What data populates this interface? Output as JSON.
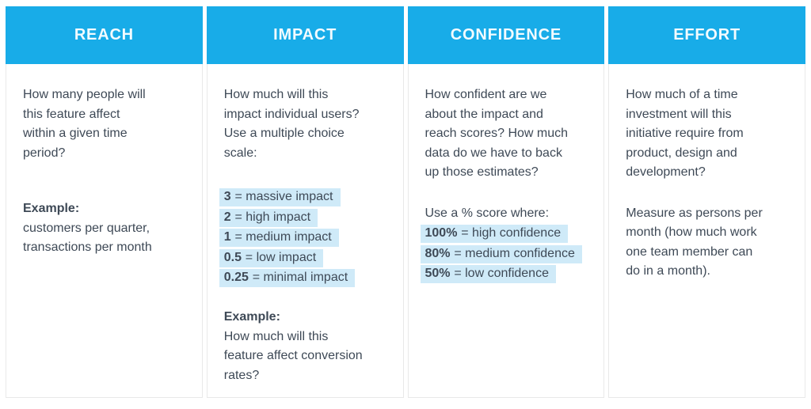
{
  "colors": {
    "header_bg": "#18ACE8",
    "header_text": "#F2FBFF",
    "highlight_bg": "#CFEAF8",
    "body_text": "#3E4956",
    "cell_border": "#E9E9E9"
  },
  "table": {
    "columns": [
      {
        "header": "REACH",
        "description": "How many people will\nthis feature affect\nwithin a given time\nperiod?",
        "example_label": "Example:",
        "example_text": "customers per quarter,\ntransactions per month"
      },
      {
        "header": "IMPACT",
        "description": "How much will this\nimpact individual users?\nUse a multiple choice\nscale:",
        "scale": [
          {
            "value": "3",
            "rest": "= massive impact"
          },
          {
            "value": "2",
            "rest": "= high impact"
          },
          {
            "value": "1",
            "rest": "= medium impact"
          },
          {
            "value": "0.5",
            "rest": "= low impact"
          },
          {
            "value": "0.25",
            "rest": "= minimal impact"
          }
        ],
        "example_label": "Example:",
        "example_text": "How much will this\nfeature affect conversion\nrates?"
      },
      {
        "header": "CONFIDENCE",
        "description": "How confident are we\nabout the impact and\nreach scores? How much\ndata do we have to back\nup those estimates?",
        "scale_intro": "Use a % score where:",
        "scale": [
          {
            "value": "100%",
            "rest": "= high confidence"
          },
          {
            "value": "80%",
            "rest": "= medium confidence"
          },
          {
            "value": "50%",
            "rest": "= low confidence"
          }
        ]
      },
      {
        "header": "EFFORT",
        "description": "How much of a time\ninvestment will this\ninitiative require from\nproduct, design and\ndevelopment?",
        "note": "Measure as persons per\nmonth (how much work\none team member can\ndo in a month)."
      }
    ]
  }
}
